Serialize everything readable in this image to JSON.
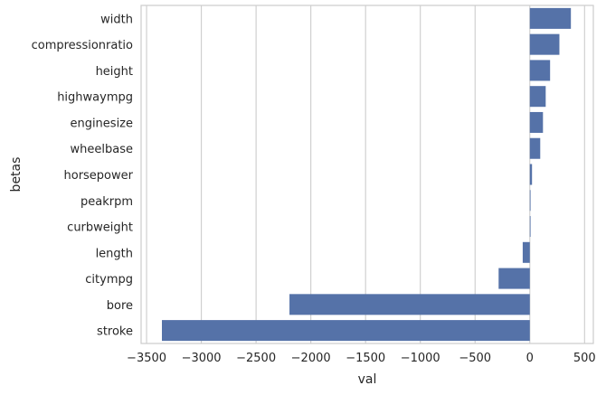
{
  "chart_data": {
    "type": "bar",
    "orientation": "horizontal",
    "xlabel": "val",
    "ylabel": "betas",
    "xlim": [
      -3550,
      580
    ],
    "xticks": [
      -3500,
      -3000,
      -2500,
      -2000,
      -1500,
      -1000,
      -500,
      0,
      500
    ],
    "xtick_labels": [
      "−3500",
      "−3000",
      "−2500",
      "−2000",
      "−1500",
      "−1000",
      "−500",
      "0",
      "500"
    ],
    "grid": "vertical",
    "bar_color": "#5572a8",
    "categories": [
      "width",
      "compressionratio",
      "height",
      "highwaympg",
      "enginesize",
      "wheelbase",
      "horsepower",
      "peakrpm",
      "curbweight",
      "length",
      "citympg",
      "bore",
      "stroke"
    ],
    "values": [
      375,
      270,
      185,
      145,
      120,
      95,
      20,
      2,
      5,
      -65,
      -285,
      -2195,
      -3360
    ]
  }
}
